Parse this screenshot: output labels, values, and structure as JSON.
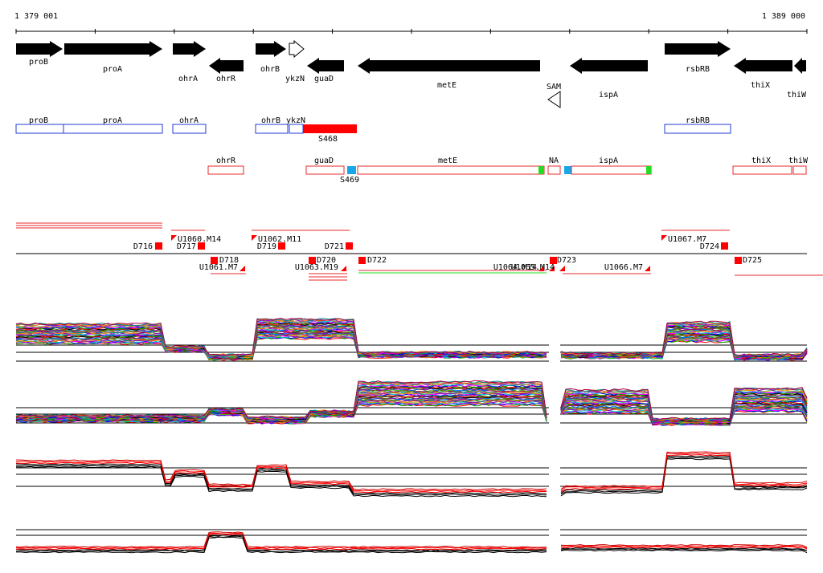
{
  "coords": {
    "start": "1 379 001",
    "end": "1 389 000"
  },
  "colors": {
    "box_blue": "#1f3bd6",
    "box_red": "#e8292b",
    "filled_red": "#ff0000",
    "sig_blue": "#1aa7e8",
    "sig_green": "#22dd22",
    "track_black": "#000000"
  },
  "genes": [
    {
      "label": "proB",
      "dir": "right"
    },
    {
      "label": "proA",
      "dir": "right"
    },
    {
      "label": "ohrA",
      "dir": "right"
    },
    {
      "label": "ohrR",
      "dir": "left"
    },
    {
      "label": "ohrB",
      "dir": "right"
    },
    {
      "label": "ykzN",
      "dir": "right-outline"
    },
    {
      "label": "guaD",
      "dir": "left"
    },
    {
      "label": "metE",
      "dir": "left"
    },
    {
      "label": "SAM",
      "dir": "left-outline"
    },
    {
      "label": "ispA",
      "dir": "left"
    },
    {
      "label": "rsbRB",
      "dir": "right"
    },
    {
      "label": "thiX",
      "dir": "left"
    },
    {
      "label": "thiW",
      "dir": "left"
    }
  ],
  "forward_units": [
    {
      "label": "proB"
    },
    {
      "label": "proA"
    },
    {
      "label": "ohrA"
    },
    {
      "label": "ohrB"
    },
    {
      "label": "ykzN"
    },
    {
      "label": "S468"
    },
    {
      "label": "rsbRB"
    }
  ],
  "reverse_units": [
    {
      "label": "ohrR"
    },
    {
      "label": "guaD"
    },
    {
      "label": "S469"
    },
    {
      "label": "metE"
    },
    {
      "label": "NA"
    },
    {
      "label": "ispA"
    },
    {
      "label": "thiX"
    },
    {
      "label": "thiW"
    }
  ],
  "segments": [
    {
      "label": "D716"
    },
    {
      "label": "U1060.M14"
    },
    {
      "label": "D717"
    },
    {
      "label": "D718"
    },
    {
      "label": "U1061.M7"
    },
    {
      "label": "U1062.M11"
    },
    {
      "label": "D719"
    },
    {
      "label": "D720"
    },
    {
      "label": "U1063.M19"
    },
    {
      "label": "D721"
    },
    {
      "label": "D722"
    },
    {
      "label": "U1064.M14"
    },
    {
      "label": "U1065.M14"
    },
    {
      "label": "D723"
    },
    {
      "label": "U1066.M7"
    },
    {
      "label": "U1067.M7"
    },
    {
      "label": "D724"
    },
    {
      "label": "D725"
    }
  ]
}
